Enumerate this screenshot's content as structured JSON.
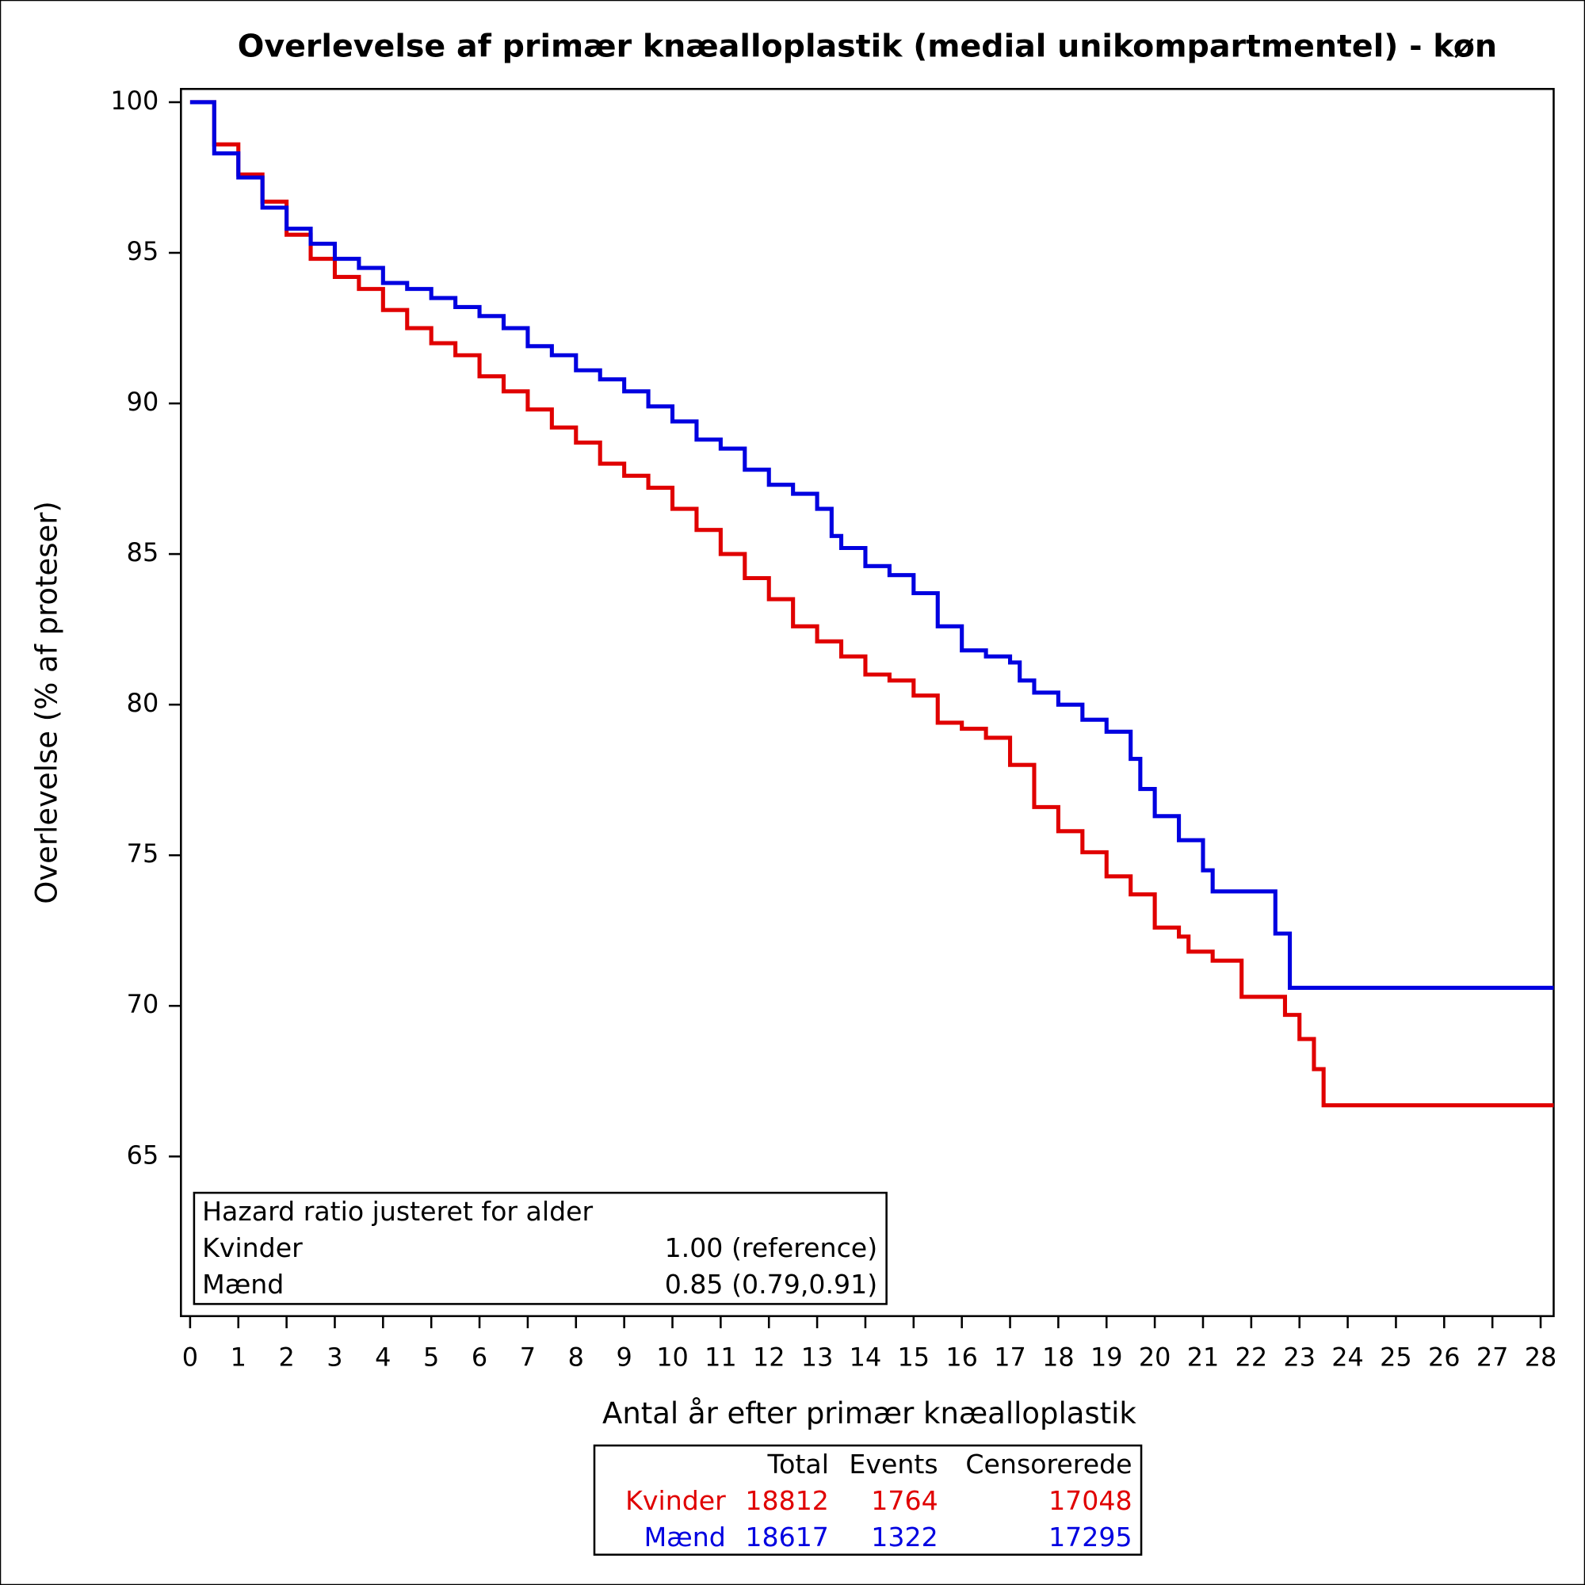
{
  "chart_data": {
    "type": "line",
    "step": true,
    "title": "Overlevelse af primær knæalloplastik (medial unikompartmentel) - køn",
    "xlabel": "Antal år efter primær knæalloplastik",
    "ylabel": "Overlevelse (% af proteser)",
    "xlim": [
      -0.19,
      28.27
    ],
    "ylim": [
      59.7,
      100.44
    ],
    "xticks": [
      0,
      1,
      2,
      3,
      4,
      5,
      6,
      7,
      8,
      9,
      10,
      11,
      12,
      13,
      14,
      15,
      16,
      17,
      18,
      19,
      20,
      21,
      22,
      23,
      24,
      25,
      26,
      27,
      28
    ],
    "yticks": [
      65,
      70,
      75,
      80,
      85,
      90,
      95,
      100
    ],
    "series": [
      {
        "name": "Kvinder",
        "color": "#e00000",
        "x": [
          0,
          0.5,
          1,
          1.5,
          2,
          2.5,
          3,
          3.5,
          4,
          4.5,
          5,
          5.5,
          6,
          6.5,
          7,
          7.5,
          8,
          8.5,
          9,
          9.5,
          10,
          10.5,
          11,
          11.5,
          12,
          12.5,
          13,
          13.5,
          14,
          14.5,
          15,
          15.5,
          16,
          16.5,
          17,
          17.5,
          18,
          18.5,
          19,
          19.5,
          20,
          20.5,
          20.7,
          21.2,
          21.8,
          22.7,
          23.0,
          23.3,
          23.5,
          28.27
        ],
        "values": [
          100,
          98.6,
          97.6,
          96.7,
          95.6,
          94.8,
          94.2,
          93.8,
          93.1,
          92.5,
          92.0,
          91.6,
          90.9,
          90.4,
          89.8,
          89.2,
          88.7,
          88.0,
          87.6,
          87.2,
          86.5,
          85.8,
          85.0,
          84.2,
          83.5,
          82.6,
          82.1,
          81.6,
          81.0,
          80.8,
          80.3,
          79.4,
          79.2,
          78.9,
          78.0,
          76.6,
          75.8,
          75.1,
          74.3,
          73.7,
          72.6,
          72.3,
          71.8,
          71.5,
          70.3,
          69.7,
          68.9,
          67.9,
          66.7,
          66.7
        ]
      },
      {
        "name": "Mænd",
        "color": "#0000e0",
        "x": [
          0,
          0.5,
          1,
          1.5,
          2,
          2.5,
          3,
          3.5,
          4,
          4.5,
          5,
          5.5,
          6,
          6.5,
          7,
          7.5,
          8,
          8.5,
          9,
          9.5,
          10,
          10.5,
          11,
          11.5,
          12,
          12.5,
          13,
          13.3,
          13.5,
          14,
          14.5,
          15,
          15.5,
          16,
          16.5,
          17,
          17.2,
          17.5,
          18,
          18.5,
          19,
          19.5,
          19.7,
          20,
          20.5,
          21,
          21.2,
          22.5,
          22.8,
          28.27
        ],
        "values": [
          100,
          98.3,
          97.5,
          96.5,
          95.8,
          95.3,
          94.8,
          94.5,
          94.0,
          93.8,
          93.5,
          93.2,
          92.9,
          92.5,
          91.9,
          91.6,
          91.1,
          90.8,
          90.4,
          89.9,
          89.4,
          88.8,
          88.5,
          87.8,
          87.3,
          87.0,
          86.5,
          85.6,
          85.2,
          84.6,
          84.3,
          83.7,
          82.6,
          81.8,
          81.6,
          81.4,
          80.8,
          80.4,
          80.0,
          79.5,
          79.1,
          78.2,
          77.2,
          76.3,
          75.5,
          74.5,
          73.8,
          72.4,
          70.6,
          70.6
        ]
      }
    ],
    "hazard_box": {
      "title": "Hazard ratio justeret for alder",
      "rows": [
        [
          "Kvinder",
          "1.00 (reference)"
        ],
        [
          "Mænd",
          "0.85 (0.79,0.91)"
        ]
      ]
    },
    "risk_table": {
      "columns": [
        "Total",
        "Events",
        "Censorerede"
      ],
      "rows": [
        [
          18812,
          1764,
          17048
        ],
        [
          18617,
          1322,
          17295
        ]
      ]
    }
  }
}
